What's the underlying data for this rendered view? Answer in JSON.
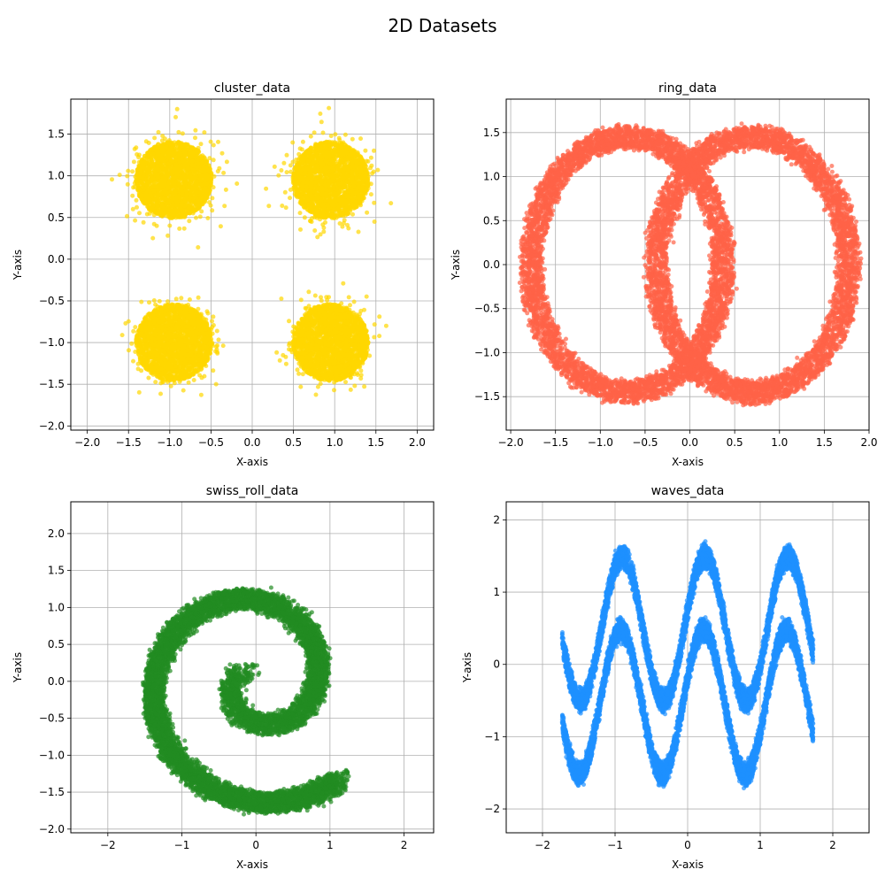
{
  "figure": {
    "title": "2D Datasets"
  },
  "chart_data": [
    {
      "type": "scatter",
      "title": "cluster_data",
      "xlabel": "X-axis",
      "ylabel": "Y-axis",
      "xlim": [
        -2.2,
        2.2
      ],
      "ylim": [
        -2.05,
        1.92
      ],
      "xticks": [
        -2.0,
        -1.5,
        -1.0,
        -0.5,
        0.0,
        0.5,
        1.0,
        1.5,
        2.0
      ],
      "yticks": [
        -2.0,
        -1.5,
        -1.0,
        -0.5,
        0.0,
        0.5,
        1.0,
        1.5
      ],
      "tick_format": 1,
      "grid": true,
      "color": "#FFD700",
      "point_alpha": 0.7,
      "shape": {
        "kind": "clusters",
        "centers": [
          [
            -0.95,
            0.95
          ],
          [
            0.95,
            0.95
          ],
          [
            -0.95,
            -1.0
          ],
          [
            0.95,
            -1.0
          ]
        ],
        "radius": 0.46,
        "points_per_cluster": 2400
      }
    },
    {
      "type": "scatter",
      "title": "ring_data",
      "xlabel": "X-axis",
      "ylabel": "Y-axis",
      "xlim": [
        -2.05,
        2.0
      ],
      "ylim": [
        -1.88,
        1.88
      ],
      "xticks": [
        -2.0,
        -1.5,
        -1.0,
        -0.5,
        0.0,
        0.5,
        1.0,
        1.5,
        2.0
      ],
      "yticks": [
        -1.5,
        -1.0,
        -0.5,
        0.0,
        0.5,
        1.0,
        1.5
      ],
      "tick_format": 1,
      "grid": true,
      "color": "#FF6347",
      "point_alpha": 0.7,
      "shape": {
        "kind": "rings",
        "centers": [
          [
            -0.7,
            0.0
          ],
          [
            0.7,
            0.0
          ]
        ],
        "rx": 1.07,
        "ry": 1.45,
        "thickness": 0.24,
        "points_per_ring": 5000
      }
    },
    {
      "type": "scatter",
      "title": "swiss_roll_data",
      "xlabel": "X-axis",
      "ylabel": "Y-axis",
      "xlim": [
        -2.5,
        2.4
      ],
      "ylim": [
        -2.05,
        2.43
      ],
      "xticks": [
        -2,
        -1,
        0,
        1,
        2
      ],
      "yticks": [
        -2.0,
        -1.5,
        -1.0,
        -0.5,
        0.0,
        0.5,
        1.0,
        1.5,
        2.0
      ],
      "xtick_format": 0,
      "ytick_format": 1,
      "grid": true,
      "color": "#228B22",
      "point_alpha": 0.7,
      "shape": {
        "kind": "spiral",
        "theta_range": [
          0.5,
          10.3
        ],
        "scale": 0.17,
        "rotation": 1.4,
        "thickness": 0.26,
        "points": 9000
      }
    },
    {
      "type": "scatter",
      "title": "waves_data",
      "xlabel": "X-axis",
      "ylabel": "Y-axis",
      "xlim": [
        -2.5,
        2.5
      ],
      "ylim": [
        -2.33,
        2.25
      ],
      "xticks": [
        -2,
        -1,
        0,
        1,
        2
      ],
      "yticks": [
        -2,
        -1,
        0,
        1,
        2
      ],
      "tick_format": 0,
      "grid": true,
      "color": "#1E90FF",
      "point_alpha": 0.7,
      "shape": {
        "kind": "waves",
        "x_range": [
          -1.73,
          1.73
        ],
        "amplitude": 1.0,
        "frequency": 5.5,
        "phase": 0.25,
        "offset_top": 0.9,
        "offset_bottom": -0.95,
        "secondary_amp": 0.35,
        "secondary_freq": 16,
        "points_per_curve": 5000
      }
    }
  ]
}
